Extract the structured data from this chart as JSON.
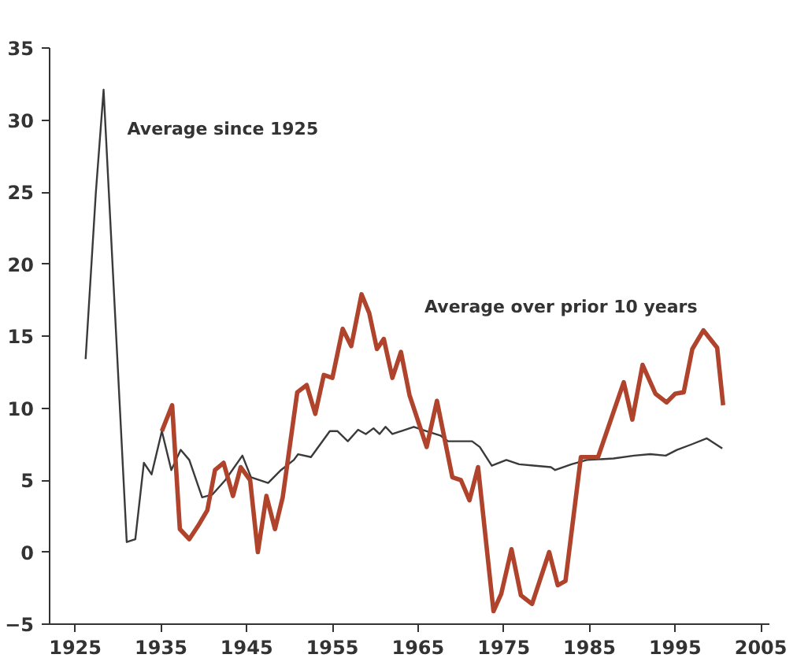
{
  "chart_data": {
    "type": "line",
    "xlim": [
      1922,
      2006
    ],
    "ylim": [
      -5,
      35
    ],
    "xticks": [
      1925,
      1935,
      1945,
      1955,
      1965,
      1975,
      1985,
      1995,
      2005
    ],
    "yticks": [
      -5,
      0,
      5,
      10,
      15,
      20,
      25,
      30,
      35
    ],
    "grid": false,
    "legend": false,
    "marker": "none",
    "line_style": "solid",
    "series": [
      {
        "name": "Average since 1925",
        "color": "#3a3a3a",
        "x": [
          1926.2,
          1927.4,
          1928.3,
          1931,
          1932,
          1933,
          1933.9,
          1935.1,
          1936.2,
          1937.3,
          1938.3,
          1939.8,
          1941,
          1942.5,
          1944.5,
          1945.5,
          1947.5,
          1949,
          1950.5,
          1951,
          1952.5,
          1954.7,
          1955.6,
          1956.8,
          1958,
          1958.9,
          1959.8,
          1960.5,
          1961.2,
          1962,
          1964.5,
          1966,
          1967.6,
          1968.5,
          1971.3,
          1972.2,
          1973.6,
          1975.3,
          1976.8,
          1978.7,
          1980.5,
          1981,
          1982.9,
          1984.7,
          1987.8,
          1990.2,
          1992.1,
          1993.9,
          1995.2,
          1997,
          1998.7,
          2000.5
        ],
        "values": [
          13.4,
          25,
          32.1,
          0.7,
          0.9,
          6.2,
          5.4,
          8.4,
          5.7,
          7.1,
          6.4,
          3.8,
          4.0,
          5.0,
          6.7,
          5.2,
          4.8,
          5.7,
          6.4,
          6.8,
          6.6,
          8.4,
          8.4,
          7.7,
          8.5,
          8.2,
          8.6,
          8.2,
          8.7,
          8.2,
          8.7,
          8.4,
          8.1,
          7.7,
          7.7,
          7.3,
          6.0,
          6.4,
          6.1,
          6.0,
          5.9,
          5.7,
          6.1,
          6.4,
          6.5,
          6.7,
          6.8,
          6.7,
          7.1,
          7.5,
          7.9,
          7.2
        ]
      },
      {
        "name": "Average over prior 10 years",
        "color": "#b0432c",
        "x": [
          1935.1,
          1936.3,
          1937.2,
          1938.3,
          1939.3,
          1940.4,
          1941.3,
          1942.3,
          1943.4,
          1944.3,
          1945.4,
          1946.3,
          1947.3,
          1948.3,
          1949.2,
          1950.9,
          1952,
          1953,
          1954,
          1955,
          1956.2,
          1957.2,
          1958.4,
          1959.3,
          1960.2,
          1961,
          1962,
          1963,
          1964,
          1966,
          1967.2,
          1969,
          1970,
          1971,
          1972,
          1973.8,
          1974.7,
          1975.9,
          1977,
          1978.3,
          1980.3,
          1981.3,
          1982.2,
          1984,
          1986,
          1989,
          1990,
          1991.2,
          1992.7,
          1994,
          1995,
          1996,
          1997,
          1998.3,
          1999.9,
          2000.6
        ],
        "values": [
          8.4,
          10.2,
          1.6,
          0.9,
          1.8,
          2.9,
          5.7,
          6.2,
          3.9,
          5.9,
          5.0,
          0,
          3.9,
          1.6,
          3.8,
          11.1,
          11.6,
          9.6,
          12.3,
          12.1,
          15.5,
          14.3,
          17.9,
          16.6,
          14.1,
          14.8,
          12.1,
          13.9,
          10.9,
          7.3,
          10.5,
          5.2,
          5.0,
          3.6,
          5.9,
          -4.1,
          -2.9,
          0.2,
          -3.0,
          -3.6,
          0,
          -2.3,
          -2.0,
          6.6,
          6.6,
          11.8,
          9.2,
          13.0,
          11,
          10.4,
          11,
          11.1,
          14.1,
          15.4,
          14.2,
          10.2
        ]
      }
    ]
  }
}
